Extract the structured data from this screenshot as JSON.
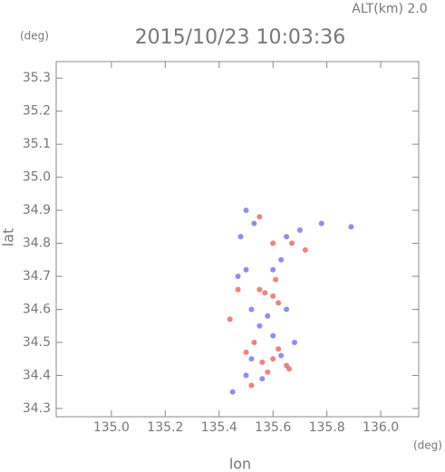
{
  "chart_data": {
    "type": "scatter",
    "title": "2015/10/23 10:03:36",
    "subtitle": "ALT(km) 2.0",
    "x_label": "lon",
    "y_label": "lat",
    "x_unit": "(deg)",
    "y_unit": "(deg)",
    "xlim": [
      134.795,
      136.141
    ],
    "ylim": [
      34.275,
      35.35
    ],
    "xticks": [
      {
        "value": 135,
        "label": "135.0"
      },
      135.2,
      135.4,
      135.6,
      135.8,
      {
        "value": 136,
        "label": "136.0"
      }
    ],
    "yticks": [
      34.3,
      34.4,
      34.5,
      34.6,
      34.7,
      34.8,
      34.9,
      {
        "value": 35,
        "label": "35.0"
      },
      35.1,
      35.2,
      35.3
    ],
    "series": [
      {
        "color": "#f06a6a",
        "x": [
          135.57,
          135.6,
          135.55,
          135.62,
          135.47,
          135.5,
          135.56,
          135.6,
          135.65,
          135.58,
          135.53,
          135.62,
          135.67,
          135.72,
          135.6,
          135.55,
          135.44,
          135.66,
          135.52,
          135.61
        ],
        "y": [
          34.65,
          34.64,
          34.66,
          34.62,
          34.66,
          34.47,
          34.44,
          34.45,
          34.43,
          34.41,
          34.5,
          34.48,
          34.8,
          34.78,
          34.8,
          34.88,
          34.57,
          34.42,
          34.37,
          34.69
        ]
      },
      {
        "color": "#7a7af0",
        "x": [
          135.5,
          135.53,
          135.48,
          135.65,
          135.7,
          135.78,
          135.63,
          135.5,
          135.6,
          135.65,
          135.52,
          135.58,
          135.55,
          135.6,
          135.52,
          135.63,
          135.5,
          135.45,
          135.56,
          135.68,
          135.89,
          135.47
        ],
        "y": [
          34.9,
          34.86,
          34.82,
          34.82,
          34.84,
          34.86,
          34.75,
          34.72,
          34.72,
          34.6,
          34.6,
          34.58,
          34.55,
          34.52,
          34.45,
          34.46,
          34.4,
          34.35,
          34.39,
          34.5,
          34.85,
          34.7
        ]
      }
    ]
  }
}
